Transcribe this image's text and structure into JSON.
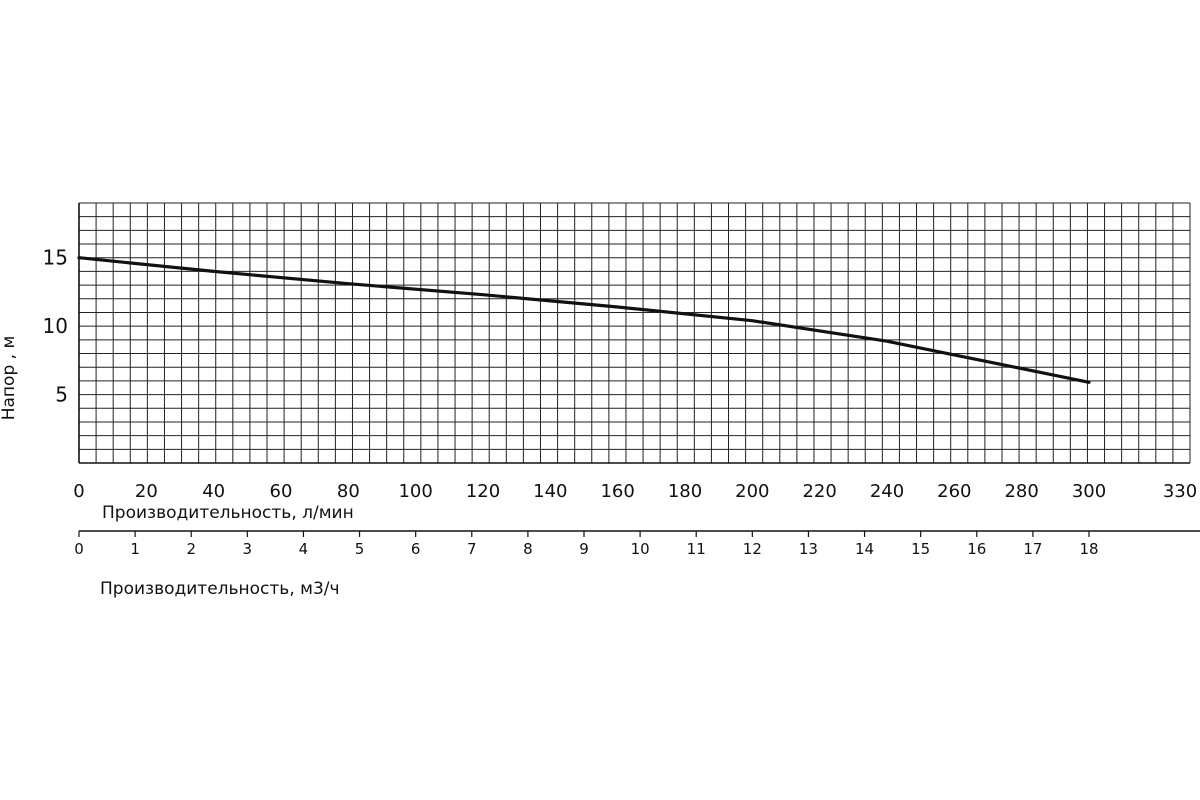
{
  "chart_data": {
    "type": "line",
    "ylabel": "Напор , м",
    "xlabel": "Производительность, л/мин",
    "x2label": "Производительность, м3/ч",
    "xlim": [
      0,
      330
    ],
    "ylim": [
      0,
      19
    ],
    "x_ticks": [
      "0",
      "20",
      "40",
      "60",
      "80",
      "100",
      "120",
      "140",
      "160",
      "180",
      "200",
      "220",
      "240",
      "260",
      "280",
      "300",
      "330"
    ],
    "x2_ticks": [
      "0",
      "1",
      "2",
      "3",
      "4",
      "5",
      "6",
      "7",
      "8",
      "9",
      "10",
      "11",
      "12",
      "13",
      "14",
      "15",
      "16",
      "17",
      "18"
    ],
    "y_ticks": [
      "5",
      "10",
      "15"
    ],
    "grid": true,
    "line_color": "#111111",
    "series": [
      {
        "x": [
          0,
          40,
          80,
          120,
          160,
          200,
          240,
          260,
          280,
          300
        ],
        "y": [
          15.0,
          14.0,
          13.1,
          12.3,
          11.4,
          10.4,
          8.9,
          7.9,
          6.9,
          5.9
        ]
      }
    ]
  }
}
